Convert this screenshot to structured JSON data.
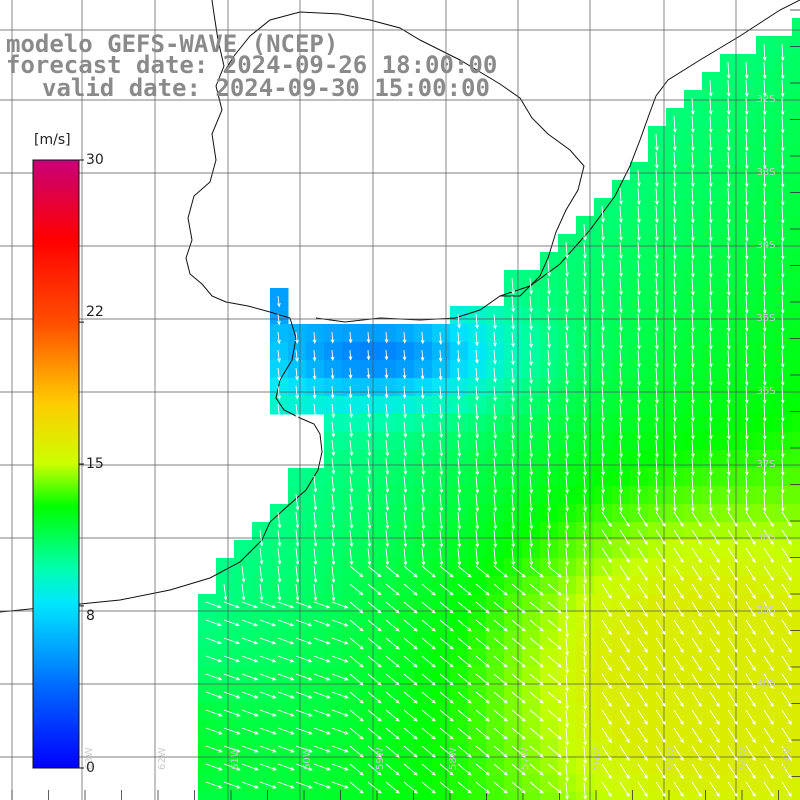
{
  "title": {
    "line1": "modelo GEFS-WAVE (NCEP)",
    "line2": "forecast date: 2024-09-26 18:00:00",
    "line3": "valid date: 2024-09-30 15:00:00"
  },
  "colorbar": {
    "unit": "[m/s]",
    "min": 0,
    "max": 30,
    "tick_labels": [
      "30",
      "22",
      "15",
      "8",
      "0"
    ],
    "tick_values": [
      30,
      22,
      15,
      8,
      0
    ],
    "colors": [
      "#0000ff",
      "#00aaff",
      "#00ffff",
      "#00ff00",
      "#ffff00",
      "#ff8800",
      "#ff0000",
      "#cc0066"
    ]
  },
  "map": {
    "lat_labels": [
      "32S",
      "33S",
      "34S",
      "35S",
      "36S",
      "37S",
      "38S",
      "39S",
      "40S"
    ],
    "lon_labels": [
      "63W",
      "62W",
      "61W",
      "60W",
      "59W",
      "58W",
      "57W",
      "56W",
      "55W",
      "54W",
      "53W"
    ],
    "land_color": "#ffffff",
    "grid_color": "#555555",
    "arrow_color": "#ffffff"
  }
}
